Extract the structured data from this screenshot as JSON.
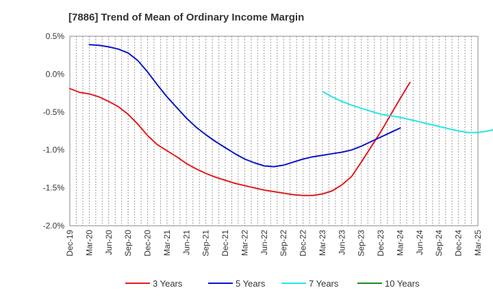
{
  "chart_data": {
    "type": "line",
    "title": "[7886]  Trend of Mean of Ordinary Income Margin",
    "xlabel": "",
    "ylabel": "",
    "x_tick_labels": [
      "Dec-19",
      "Mar-20",
      "Jun-20",
      "Sep-20",
      "Dec-20",
      "Mar-21",
      "Jun-21",
      "Sep-21",
      "Dec-21",
      "Mar-22",
      "Jun-22",
      "Sep-22",
      "Dec-22",
      "Mar-23",
      "Jun-23",
      "Sep-23",
      "Dec-23",
      "Mar-24",
      "Jun-24",
      "Sep-24",
      "Dec-24",
      "Mar-25"
    ],
    "y_tick_labels": [
      "0.5%",
      "0.0%",
      "-0.5%",
      "-1.0%",
      "-1.5%",
      "-2.0%"
    ],
    "ylim": [
      -2.0,
      0.5
    ],
    "y_ticks": [
      0.5,
      0.0,
      -0.5,
      -1.0,
      -1.5,
      -2.0
    ],
    "grid": "vertical dashed",
    "legend_position": "bottom",
    "series": [
      {
        "name": "3 Years",
        "color": "#e31a1c",
        "start_index": 0,
        "values": [
          -0.19,
          -0.24,
          -0.26,
          -0.3,
          -0.36,
          -0.43,
          -0.53,
          -0.66,
          -0.81,
          -0.93,
          -1.01,
          -1.09,
          -1.18,
          -1.25,
          -1.31,
          -1.36,
          -1.4,
          -1.44,
          -1.47,
          -1.5,
          -1.53,
          -1.55,
          -1.57,
          -1.59,
          -1.6,
          -1.6,
          -1.58,
          -1.54,
          -1.46,
          -1.35,
          -1.16,
          -0.96,
          -0.76,
          -0.54,
          -0.32,
          -0.11
        ]
      },
      {
        "name": "5 Years",
        "color": "#0a14c8",
        "start_index": 1,
        "values": [
          0.39,
          0.38,
          0.36,
          0.33,
          0.28,
          0.18,
          0.03,
          -0.14,
          -0.3,
          -0.44,
          -0.58,
          -0.7,
          -0.8,
          -0.89,
          -0.97,
          -1.05,
          -1.12,
          -1.17,
          -1.21,
          -1.22,
          -1.2,
          -1.16,
          -1.12,
          -1.09,
          -1.07,
          -1.05,
          -1.03,
          -1.0,
          -0.95,
          -0.89,
          -0.83,
          -0.77,
          -0.71
        ]
      },
      {
        "name": "7 Years",
        "color": "#22e6e6",
        "start_index": 13,
        "values": [
          -0.23,
          -0.3,
          -0.36,
          -0.41,
          -0.45,
          -0.49,
          -0.53,
          -0.55,
          -0.57,
          -0.6,
          -0.63,
          -0.66,
          -0.69,
          -0.72,
          -0.75,
          -0.77,
          -0.77,
          -0.75,
          -0.72,
          -0.7
        ]
      },
      {
        "name": "10 Years",
        "color": "#1a8a1a",
        "start_index": 0,
        "values": []
      }
    ]
  }
}
